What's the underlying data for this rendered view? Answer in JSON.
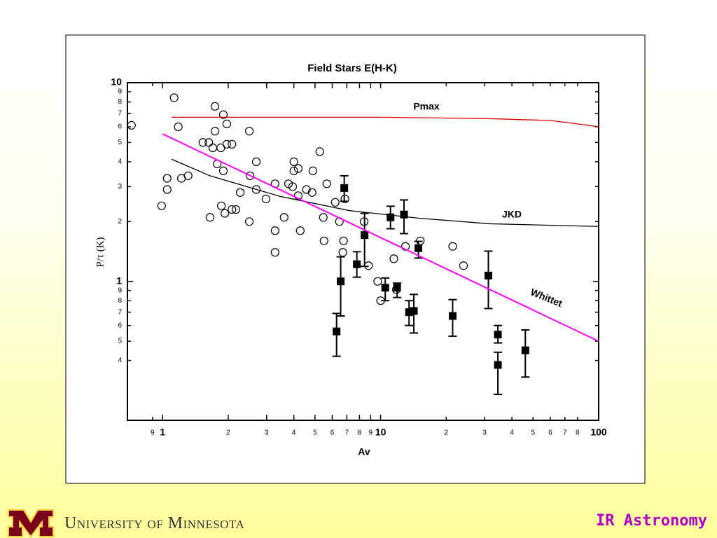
{
  "chart_data": {
    "type": "scatter",
    "title": "Field Stars E(H-K)",
    "x_label": "Av",
    "y_label": "P/τ (K)",
    "xscale": "log",
    "yscale": "log",
    "xlim": [
      0.69,
      100
    ],
    "ylim": [
      0.2,
      10
    ],
    "xticks": [
      {
        "value": 0.9,
        "label": "9"
      },
      1,
      2,
      3,
      4,
      5,
      6,
      7,
      8,
      9,
      10,
      {
        "value": 20,
        "label": "2"
      },
      {
        "value": 30,
        "label": "3"
      },
      {
        "value": 40,
        "label": "4"
      },
      {
        "value": 50,
        "label": "5"
      },
      {
        "value": 60,
        "label": "6"
      },
      {
        "value": 70,
        "label": "7"
      },
      {
        "value": 80,
        "label": "8"
      },
      100
    ],
    "yticks": [
      {
        "value": 0.4,
        "label": "4"
      },
      {
        "value": 0.5,
        "label": "5"
      },
      {
        "value": 0.6,
        "label": "6"
      },
      {
        "value": 0.7,
        "label": "7"
      },
      {
        "value": 0.8,
        "label": "8"
      },
      {
        "value": 0.9,
        "label": "9"
      },
      1,
      2,
      3,
      4,
      5,
      6,
      7,
      8,
      9,
      10
    ],
    "series": [
      {
        "kind": "scatter",
        "marker": "open-circle",
        "color": "#000000",
        "x": [
          0.72,
          1.13,
          1.18,
          0.99,
          1.05,
          1.05,
          1.22,
          1.31,
          1.74,
          1.9,
          1.97,
          1.74,
          1.53,
          1.63,
          1.7,
          1.85,
          1.97,
          2.08,
          1.78,
          1.9,
          1.86,
          1.93,
          1.65,
          2.08,
          2.17,
          2.27,
          2.5,
          2.52,
          2.69,
          2.69,
          2.98,
          2.5,
          3.28,
          3.28,
          3.28,
          3.61,
          3.78,
          3.95,
          4.0,
          4.0,
          4.19,
          4.19,
          4.28,
          4.57,
          4.85,
          4.89,
          5.26,
          5.46,
          5.5,
          5.66,
          6.19,
          6.47,
          6.71,
          6.76,
          6.86,
          8.4,
          8.8,
          9.7,
          10,
          11.8,
          11.5,
          13.0,
          15.2,
          21.4,
          24.0
        ],
        "values": [
          6.1,
          8.4,
          6.0,
          2.4,
          3.3,
          2.9,
          3.3,
          3.4,
          7.6,
          6.9,
          6.2,
          5.7,
          5.0,
          5.0,
          4.7,
          4.7,
          4.9,
          4.9,
          3.9,
          3.6,
          2.4,
          2.2,
          2.1,
          2.3,
          2.3,
          2.8,
          5.7,
          3.4,
          4.0,
          2.9,
          2.6,
          2.0,
          3.1,
          1.8,
          1.4,
          2.1,
          3.1,
          3.0,
          4.0,
          3.6,
          3.7,
          2.7,
          1.8,
          2.9,
          2.8,
          3.6,
          4.5,
          2.1,
          1.6,
          3.1,
          2.5,
          2.0,
          1.4,
          1.6,
          2.6,
          2.0,
          1.2,
          1.0,
          0.8,
          0.91,
          1.3,
          1.5,
          1.6,
          1.5,
          1.2
        ]
      },
      {
        "kind": "errorbar",
        "marker": "filled-square",
        "color": "#000000",
        "x": [
          6.28,
          6.56,
          6.81,
          7.78,
          8.44,
          10.5,
          11.1,
          11.9,
          12.8,
          13.5,
          14.2,
          14.9,
          21.4,
          31.2,
          34.5,
          34.5,
          46.1
        ],
        "values": [
          0.56,
          1.0,
          2.95,
          1.22,
          1.71,
          0.93,
          2.1,
          0.93,
          2.17,
          0.7,
          0.71,
          1.47,
          0.67,
          1.07,
          0.54,
          0.38,
          0.45
        ],
        "ylow": [
          0.42,
          0.67,
          2.53,
          1.05,
          1.19,
          0.8,
          1.84,
          0.83,
          1.74,
          0.6,
          0.55,
          1.31,
          0.53,
          0.73,
          0.49,
          0.27,
          0.33
        ],
        "yhigh": [
          0.69,
          1.33,
          3.4,
          1.41,
          2.2,
          1.04,
          2.39,
          0.98,
          2.57,
          0.8,
          0.86,
          1.59,
          0.81,
          1.42,
          0.6,
          0.44,
          0.57
        ]
      },
      {
        "kind": "line",
        "name": "Pmax",
        "color": "#e00000",
        "x": [
          1.1,
          3,
          10,
          30,
          60,
          80,
          100
        ],
        "values": [
          6.7,
          6.7,
          6.7,
          6.6,
          6.45,
          6.2,
          6.0
        ]
      },
      {
        "kind": "line",
        "name": "JKD",
        "color": "#000000",
        "x": [
          1.1,
          1.65,
          3.45,
          7.2,
          15,
          31.6,
          100
        ],
        "values": [
          4.12,
          3.4,
          2.68,
          2.27,
          2.08,
          1.95,
          1.89
        ]
      },
      {
        "kind": "line",
        "name": "Whittet",
        "color": "#ff00ff",
        "x": [
          1,
          100
        ],
        "values": [
          5.52,
          0.5
        ]
      }
    ]
  },
  "footer": {
    "institution": "University of Minnesota",
    "course": "IR Astronomy"
  }
}
